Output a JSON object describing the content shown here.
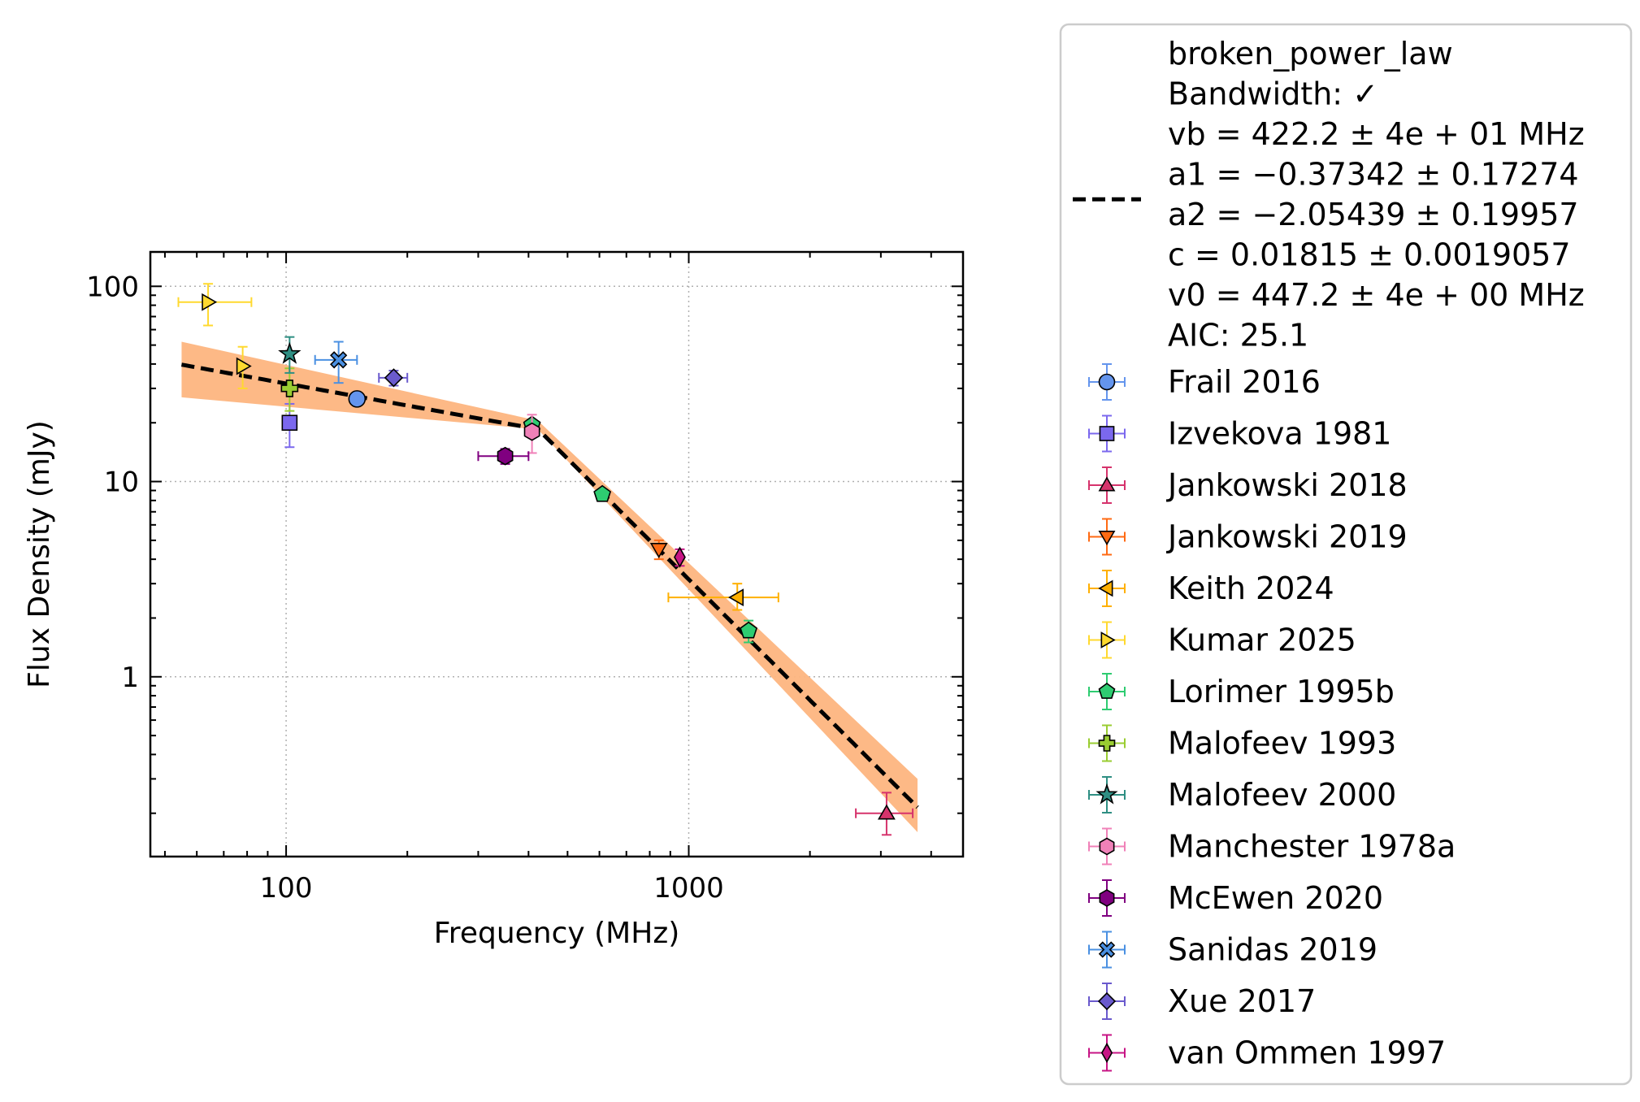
{
  "chart_data": {
    "type": "scatter",
    "xlabel": "Frequency (MHz)",
    "ylabel": "Flux Density (mJy)",
    "xscale": "log",
    "yscale": "log",
    "xlim": [
      46,
      4800
    ],
    "ylim": [
      0.12,
      150
    ],
    "xticks": [
      100,
      1000
    ],
    "xtick_labels": [
      "100",
      "1000"
    ],
    "yticks": [
      1,
      10,
      100
    ],
    "ytick_labels": [
      "1",
      "10",
      "100"
    ],
    "grid": true,
    "legend_position": "outside-right",
    "fit": {
      "model": "broken_power_law",
      "text_lines": [
        "broken_power_law",
        "Bandwidth: ✓",
        "vb = 422.2 ± 4e + 01 MHz",
        "a1 = −0.37342 ± 0.17274",
        "a2 = −2.05439 ± 0.19957",
        "c = 0.01815 ± 0.0019057",
        "v0 = 447.2 ± 4e + 00 MHz",
        "AIC: 25.1"
      ],
      "vb": 422.2,
      "a1": -0.37342,
      "a2": -2.05439,
      "c": 0.01815,
      "v0": 447.2,
      "x_range": [
        55,
        3700
      ],
      "line_color": "#000000",
      "band_color": "#fdb57f",
      "band": [
        {
          "x": 55,
          "lo": 27,
          "hi": 52
        },
        {
          "x": 422,
          "lo": 18.5,
          "hi": 20.5
        },
        {
          "x": 3700,
          "lo": 0.16,
          "hi": 0.3
        }
      ]
    },
    "series": [
      {
        "name": "Frail 2016",
        "marker": "circle",
        "color": "#6495ed",
        "points": [
          {
            "x": 150,
            "y": 26.5,
            "xerr": [
              0,
              0
            ],
            "yerr": [
              0,
              0
            ]
          }
        ]
      },
      {
        "name": "Izvekova 1981",
        "marker": "square",
        "color": "#7b68ee",
        "points": [
          {
            "x": 102,
            "y": 20,
            "xerr": [
              0,
              0
            ],
            "yerr": [
              5,
              5
            ]
          }
        ]
      },
      {
        "name": "Jankowski 2018",
        "marker": "triangle-up",
        "color": "#d6336c",
        "points": [
          {
            "x": 3100,
            "y": 0.2,
            "xerr": [
              500,
              500
            ],
            "yerr": [
              0.045,
              0.055
            ]
          }
        ]
      },
      {
        "name": "Jankowski 2019",
        "marker": "triangle-down",
        "color": "#ff6a13",
        "points": [
          {
            "x": 843,
            "y": 4.5,
            "xerr": [
              0,
              0
            ],
            "yerr": [
              0.5,
              0.5
            ]
          }
        ]
      },
      {
        "name": "Keith 2024",
        "marker": "triangle-left",
        "color": "#ffb000",
        "points": [
          {
            "x": 1320,
            "y": 2.55,
            "xerr": [
              430,
              350
            ],
            "yerr": [
              0.35,
              0.45
            ]
          }
        ]
      },
      {
        "name": "Kumar 2025",
        "marker": "triangle-right",
        "color": "#ffd92f",
        "points": [
          {
            "x": 64,
            "y": 83,
            "xerr": [
              10,
              18
            ],
            "yerr": [
              20,
              20
            ]
          },
          {
            "x": 78,
            "y": 39,
            "xerr": [
              0,
              0
            ],
            "yerr": [
              9,
              10
            ]
          }
        ]
      },
      {
        "name": "Lorimer 1995b",
        "marker": "pentagon",
        "color": "#2ecc71",
        "points": [
          {
            "x": 408,
            "y": 19.5,
            "xerr": [
              0,
              0
            ],
            "yerr": [
              0,
              0
            ]
          },
          {
            "x": 610,
            "y": 8.6,
            "xerr": [
              0,
              0
            ],
            "yerr": [
              0,
              0
            ]
          },
          {
            "x": 1408,
            "y": 1.72,
            "xerr": [
              0,
              0
            ],
            "yerr": [
              0.22,
              0.22
            ]
          }
        ]
      },
      {
        "name": "Malofeev 1993",
        "marker": "plus",
        "color": "#9acd32",
        "points": [
          {
            "x": 102,
            "y": 30,
            "xerr": [
              0,
              0
            ],
            "yerr": [
              7,
              8
            ]
          }
        ]
      },
      {
        "name": "Malofeev 2000",
        "marker": "star",
        "color": "#2f8f83",
        "points": [
          {
            "x": 102,
            "y": 45,
            "xerr": [
              0,
              0
            ],
            "yerr": [
              9,
              10
            ]
          }
        ]
      },
      {
        "name": "Manchester 1978a",
        "marker": "hexagon",
        "color": "#f081b8",
        "points": [
          {
            "x": 408,
            "y": 18,
            "xerr": [
              0,
              0
            ],
            "yerr": [
              4,
              4
            ]
          }
        ]
      },
      {
        "name": "McEwen 2020",
        "marker": "hexagon",
        "color": "#800080",
        "points": [
          {
            "x": 350,
            "y": 13.5,
            "xerr": [
              50,
              50
            ],
            "yerr": [
              1.2,
              1.2
            ]
          }
        ]
      },
      {
        "name": "Sanidas 2019",
        "marker": "x-filled",
        "color": "#4a90e2",
        "points": [
          {
            "x": 135,
            "y": 42,
            "xerr": [
              17,
              15
            ],
            "yerr": [
              10,
              10
            ]
          }
        ]
      },
      {
        "name": "Xue 2017",
        "marker": "diamond",
        "color": "#6a5acd",
        "points": [
          {
            "x": 185,
            "y": 34,
            "xerr": [
              15,
              15
            ],
            "yerr": [
              3,
              3
            ]
          }
        ]
      },
      {
        "name": "van Ommen 1997",
        "marker": "thin-diamond",
        "color": "#c71585",
        "points": [
          {
            "x": 950,
            "y": 4.1,
            "xerr": [
              0,
              0
            ],
            "yerr": [
              0.4,
              0.4
            ]
          }
        ]
      }
    ]
  }
}
